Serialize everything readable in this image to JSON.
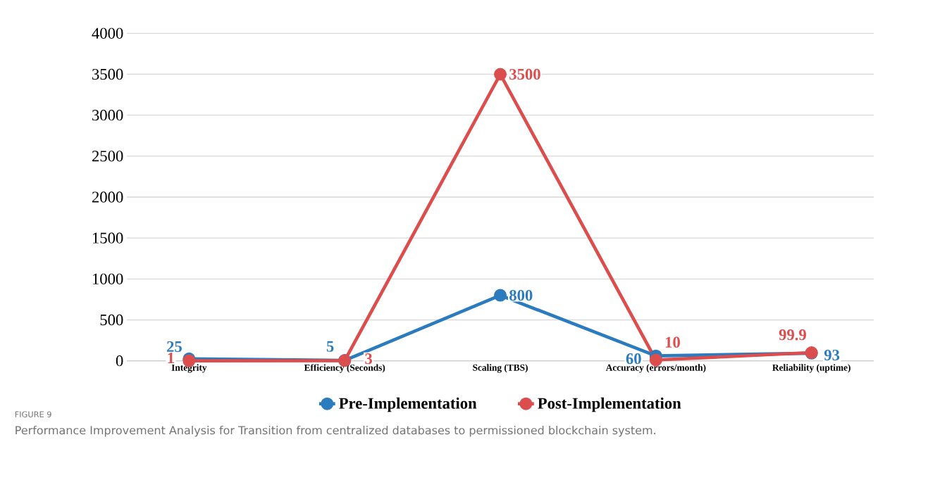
{
  "chart_data": {
    "type": "line",
    "categories": [
      "Integrity",
      "Efficiency (Seconds)",
      "Scaling (TBS)",
      "Accuracy (errors/month)",
      "Reliability (uptime)"
    ],
    "series": [
      {
        "name": "Pre-Implementation",
        "color": "#2b7bbf",
        "values": [
          25,
          5,
          800,
          60,
          93
        ]
      },
      {
        "name": "Post-Implementation",
        "color": "#dc4d4d",
        "values": [
          1,
          3,
          3500,
          10,
          99.9
        ]
      }
    ],
    "ylim": [
      0,
      4000
    ],
    "yticks": [
      0,
      500,
      1000,
      1500,
      2000,
      2500,
      3000,
      3500,
      4000
    ],
    "grid": "y",
    "legend": "bottom",
    "marker": "circle",
    "line_style": "solid",
    "data_labels": true,
    "annotations": [
      "FIGURE 9",
      "Performance Improvement Analysis for Transition from centralized databases to permissioned blockchain system."
    ]
  }
}
